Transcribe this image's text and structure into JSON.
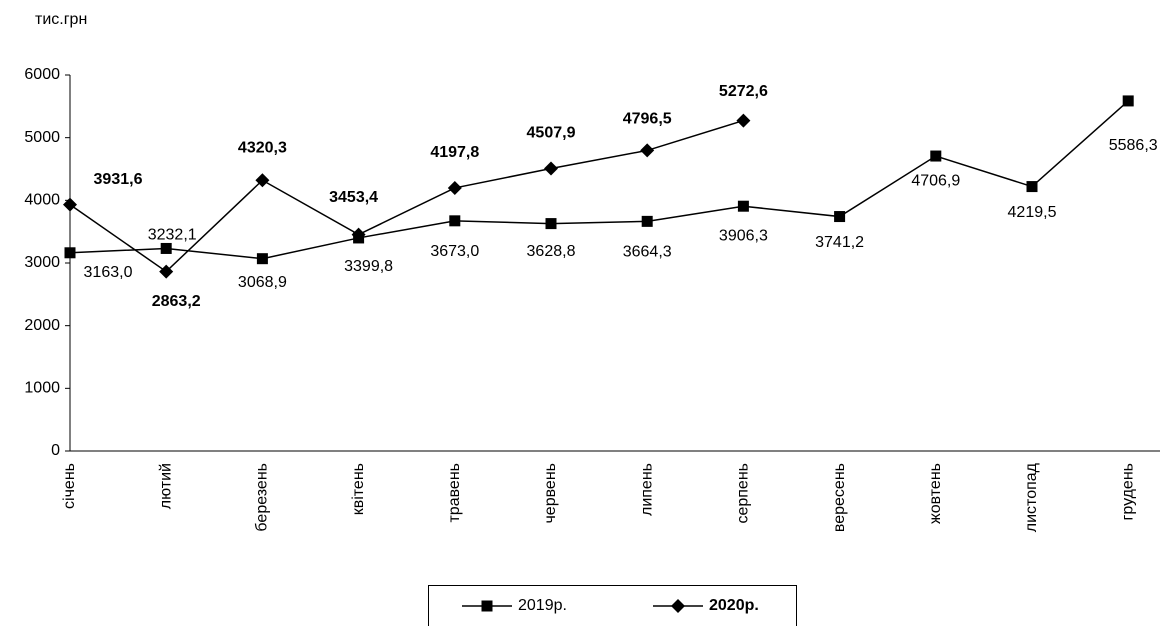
{
  "chart_data": {
    "type": "line",
    "y_label": "тис.грн",
    "categories": [
      "січень",
      "лютий",
      "березень",
      "квітень",
      "травень",
      "червень",
      "липень",
      "серпень",
      "вересень",
      "жовтень",
      "листопад",
      "грудень"
    ],
    "series": [
      {
        "name": "2019р.",
        "color": "#000000",
        "marker": "square",
        "values": [
          3163.0,
          3232.1,
          3068.9,
          3399.8,
          3673.0,
          3628.8,
          3664.3,
          3906.3,
          3741.2,
          4706.9,
          4219.5,
          5586.3
        ],
        "value_labels": [
          "3163,0",
          "3232,1",
          "3068,9",
          "3399,8",
          "3673,0",
          "3628,8",
          "3664,3",
          "3906,3",
          "3741,2",
          "4706,9",
          "4219,5",
          "5586,3"
        ]
      },
      {
        "name": "2020р.",
        "color": "#000000",
        "marker": "diamond",
        "values": [
          3931.6,
          2863.2,
          4320.3,
          3453.4,
          4197.8,
          4507.9,
          4796.5,
          5272.6,
          null,
          null,
          null,
          null
        ],
        "value_labels": [
          "3931,6",
          "2863,2",
          "4320,3",
          "3453,4",
          "4197,8",
          "4507,9",
          "4796,5",
          "5272,6",
          null,
          null,
          null,
          null
        ]
      }
    ],
    "ylim": [
      0,
      6000
    ],
    "yticks": [
      0,
      1000,
      2000,
      3000,
      4000,
      5000,
      6000
    ],
    "grid": false,
    "legend": "bottom"
  }
}
